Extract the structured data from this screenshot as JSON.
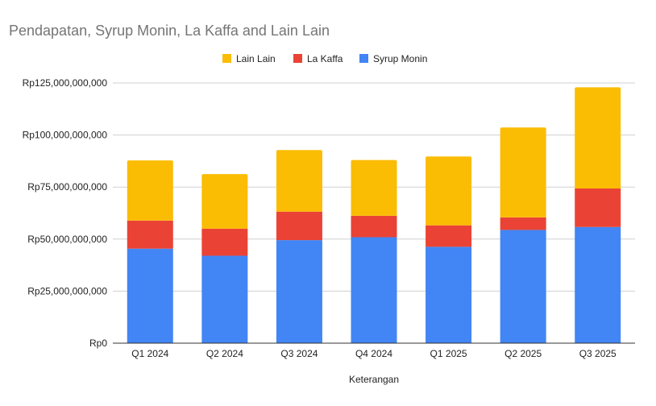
{
  "chart_data": {
    "type": "bar",
    "stacked": true,
    "title": "Pendapatan, Syrup Monin, La Kaffa and Lain Lain",
    "xlabel": "Keterangan",
    "ylabel": "",
    "categories": [
      "Q1 2024",
      "Q2 2024",
      "Q3 2024",
      "Q4 2024",
      "Q1 2025",
      "Q2 2025",
      "Q3 2025"
    ],
    "series": [
      {
        "name": "Syrup Monin",
        "color": "#4285F4",
        "values": [
          45400000000,
          42000000000,
          49500000000,
          50900000000,
          46300000000,
          54400000000,
          55800000000
        ]
      },
      {
        "name": "La Kaffa",
        "color": "#EA4335",
        "values": [
          13500000000,
          13000000000,
          13700000000,
          10300000000,
          10300000000,
          6000000000,
          18500000000
        ]
      },
      {
        "name": "Lain Lain",
        "color": "#FBBC04",
        "values": [
          28900000000,
          26200000000,
          29600000000,
          26800000000,
          33100000000,
          43200000000,
          48600000000
        ]
      }
    ],
    "legend_order": [
      "Lain Lain",
      "La Kaffa",
      "Syrup Monin"
    ],
    "legend_position": "top",
    "ylim": [
      0,
      125000000000
    ],
    "yticks": [
      0,
      25000000000,
      50000000000,
      75000000000,
      100000000000,
      125000000000
    ],
    "ytick_labels": [
      "Rp0",
      "Rp25,000,000,000",
      "Rp50,000,000,000",
      "Rp75,000,000,000",
      "Rp100,000,000,000",
      "Rp125,000,000,000"
    ],
    "grid": true
  }
}
